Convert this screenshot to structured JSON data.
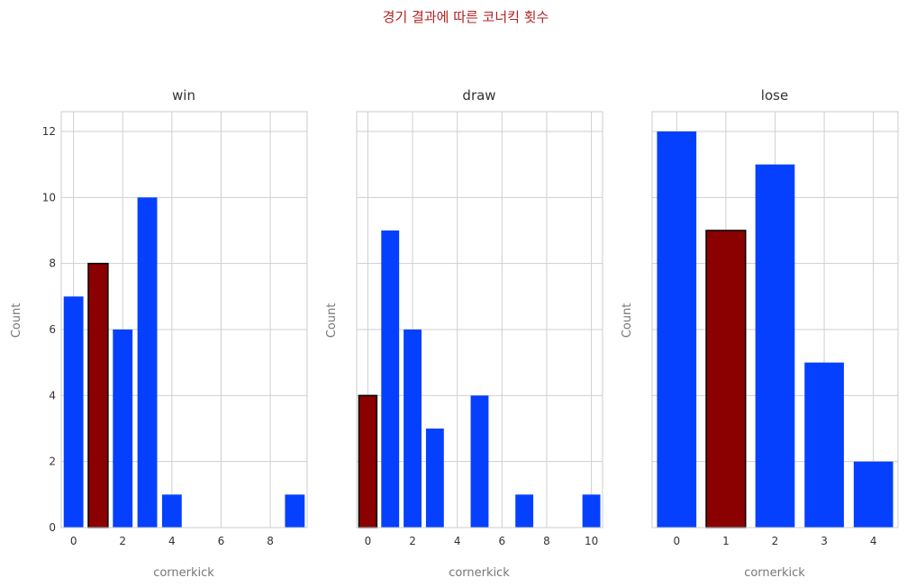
{
  "suptitle": "경기 결과에 따른 코너킥 횟수",
  "colors": {
    "normal": "#0540ff",
    "highlight": "#8b0000",
    "highlight_edge": "#000000"
  },
  "chart_data": [
    {
      "type": "bar",
      "title": "win",
      "xlabel": "cornerkick",
      "ylabel": "Count",
      "x": [
        0,
        1,
        2,
        3,
        4,
        9
      ],
      "values": [
        7,
        8,
        6,
        10,
        1,
        1
      ],
      "highlight_x": 1,
      "xlim": [
        -0.5,
        9.5
      ],
      "ylim": [
        0,
        12.6
      ],
      "xticks": [
        0,
        2,
        4,
        6,
        8
      ],
      "yticks": [
        0,
        2,
        4,
        6,
        8,
        10,
        12
      ],
      "show_yticklabels": true,
      "grid": true
    },
    {
      "type": "bar",
      "title": "draw",
      "xlabel": "cornerkick",
      "ylabel": "Count",
      "x": [
        0,
        1,
        2,
        3,
        5,
        7,
        10
      ],
      "values": [
        4,
        9,
        6,
        3,
        4,
        1,
        1
      ],
      "highlight_x": 0,
      "xlim": [
        -0.5,
        10.5
      ],
      "ylim": [
        0,
        12.6
      ],
      "xticks": [
        0,
        2,
        4,
        6,
        8,
        10
      ],
      "yticks": [
        0,
        2,
        4,
        6,
        8,
        10,
        12
      ],
      "show_yticklabels": false,
      "grid": true
    },
    {
      "type": "bar",
      "title": "lose",
      "xlabel": "cornerkick",
      "ylabel": "Count",
      "x": [
        0,
        1,
        2,
        3,
        4
      ],
      "values": [
        12,
        9,
        11,
        5,
        2
      ],
      "highlight_x": 1,
      "xlim": [
        -0.5,
        4.5
      ],
      "ylim": [
        0,
        12.6
      ],
      "xticks": [
        0,
        1,
        2,
        3,
        4
      ],
      "yticks": [
        0,
        2,
        4,
        6,
        8,
        10,
        12
      ],
      "show_yticklabels": false,
      "grid": true
    }
  ]
}
